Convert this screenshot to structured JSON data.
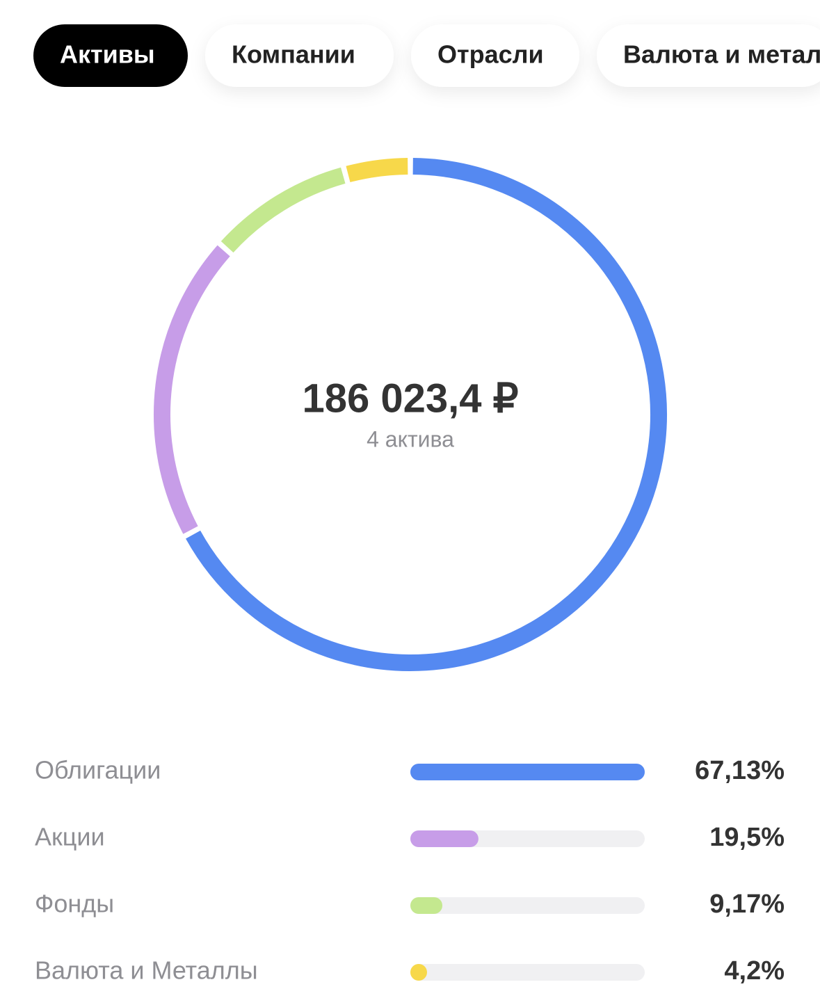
{
  "tabs": [
    {
      "label": "Активы",
      "selected": true
    },
    {
      "label": "Компании",
      "selected": false
    },
    {
      "label": "Отрасли",
      "selected": false
    },
    {
      "label": "Валюта и металлы",
      "selected": false
    }
  ],
  "chart_data": {
    "type": "donut",
    "center_title": "186 023,4 ₽",
    "center_subtitle": "4 актива",
    "categories": [
      "Облигации",
      "Акции",
      "Фонды",
      "Валюта и Металлы"
    ],
    "values": [
      67.13,
      19.5,
      9.17,
      4.2
    ],
    "value_labels": [
      "67,13%",
      "19,5%",
      "9,17%",
      "4,2%"
    ],
    "colors": [
      "#5589f1",
      "#c79de8",
      "#c4e88f",
      "#f7d84a"
    ]
  }
}
